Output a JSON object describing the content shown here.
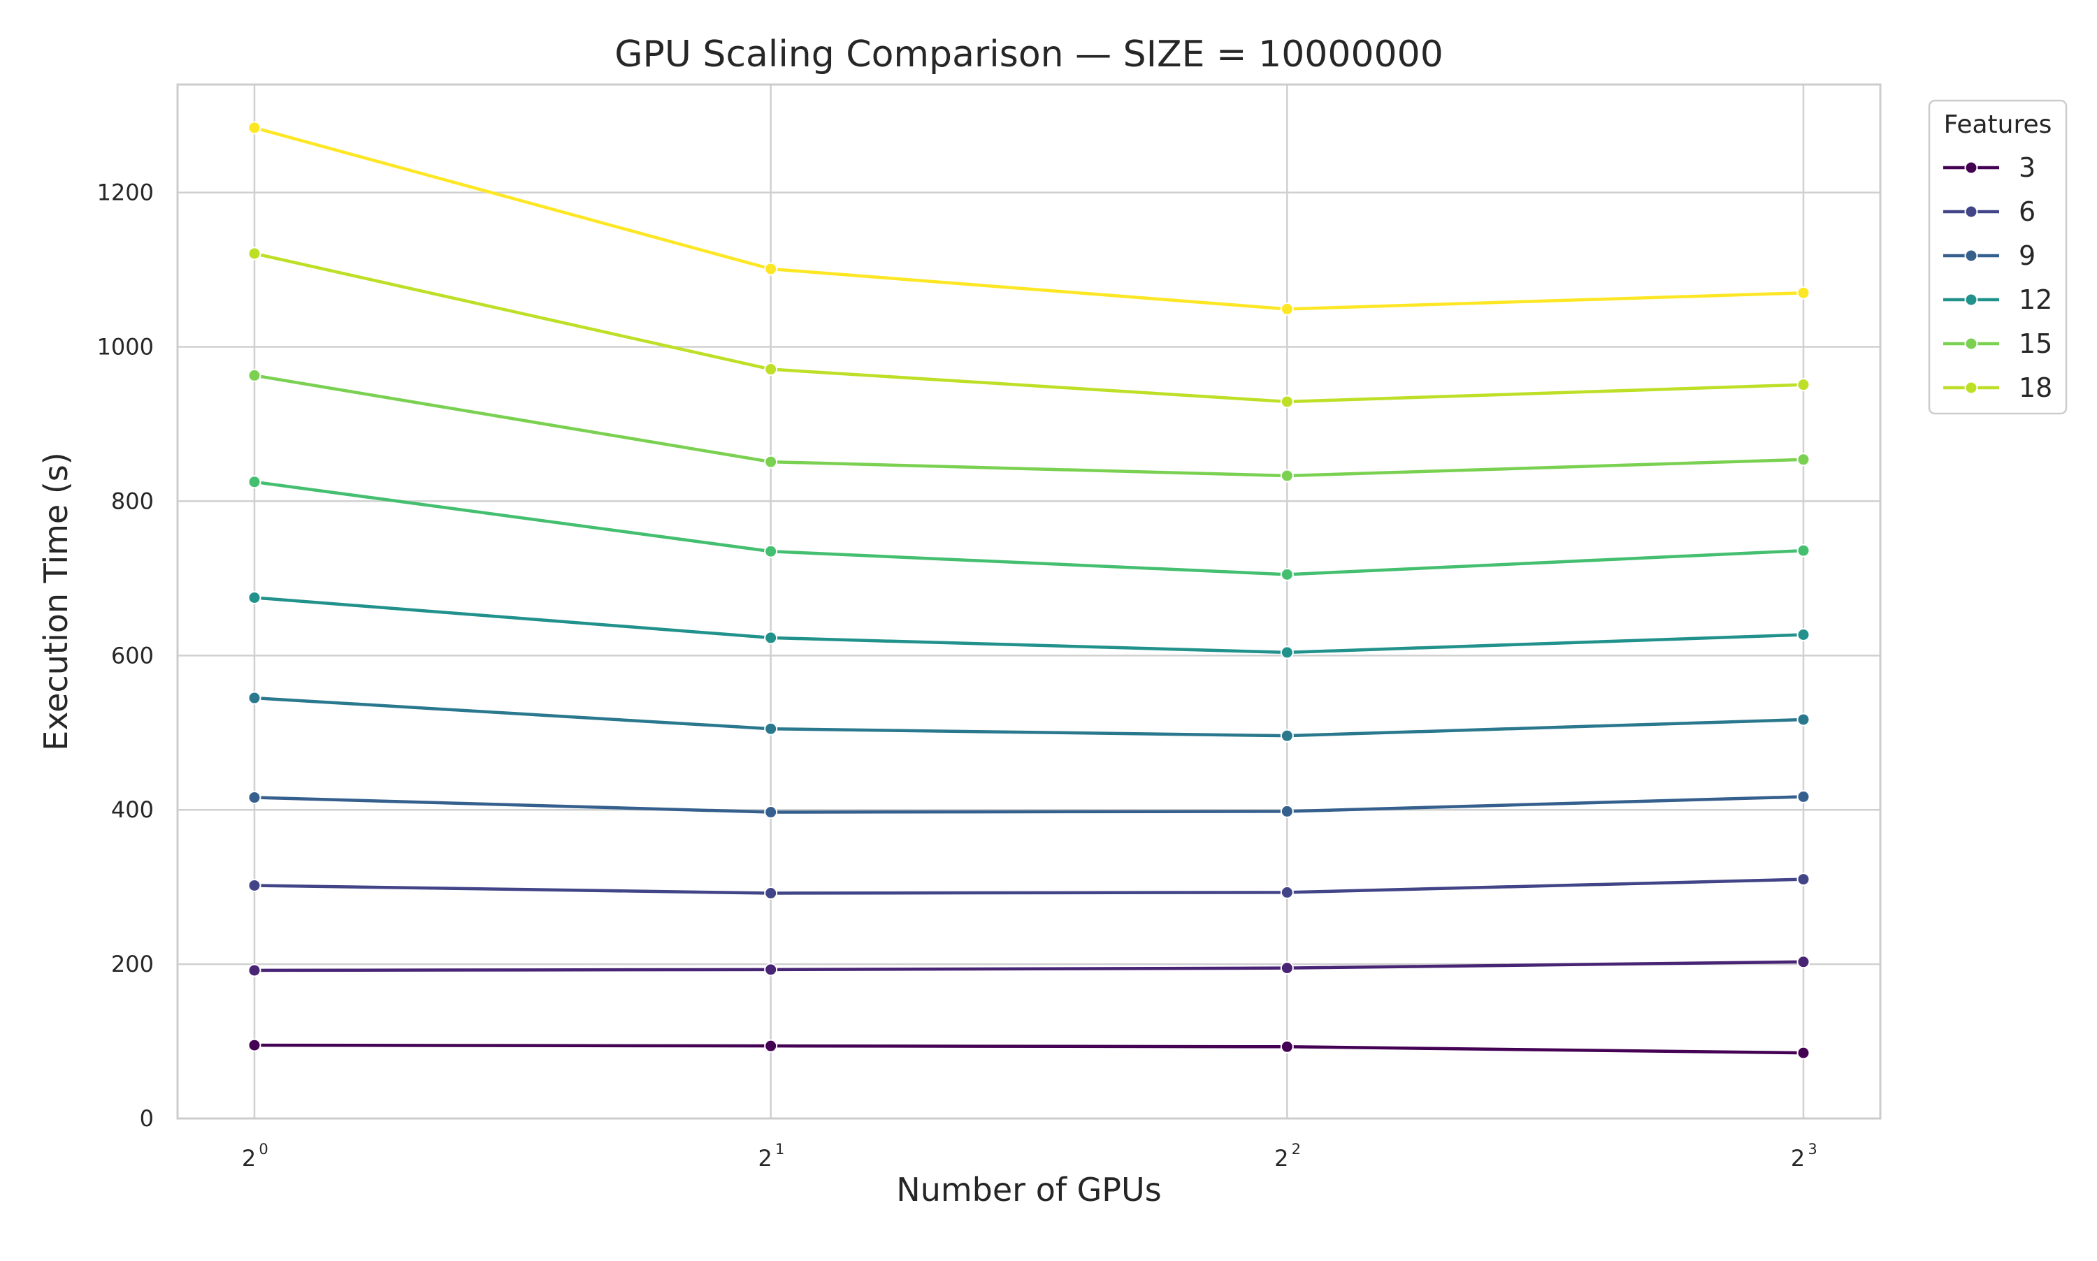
{
  "chart_data": {
    "type": "line",
    "title": "GPU Scaling Comparison — SIZE = 10000000",
    "xlabel": "Number of GPUs",
    "ylabel": "Execution Time (s)",
    "x": [
      1,
      2,
      4,
      8
    ],
    "x_scale": "log2",
    "x_tick_labels": [
      {
        "base": "2",
        "exp": "0"
      },
      {
        "base": "2",
        "exp": "1"
      },
      {
        "base": "2",
        "exp": "2"
      },
      {
        "base": "2",
        "exp": "3"
      }
    ],
    "ylim": [
      0,
      1340
    ],
    "y_ticks": [
      0,
      200,
      400,
      600,
      800,
      1000,
      1200
    ],
    "grid": true,
    "legend": {
      "title": "Features",
      "placement": "outside top-right"
    },
    "series": [
      {
        "name": "3",
        "color": "#440154",
        "values": [
          95,
          94,
          93,
          85
        ],
        "in_legend": true
      },
      {
        "name": "",
        "color": "#482475",
        "values": [
          192,
          193,
          195,
          203
        ],
        "in_legend": false
      },
      {
        "name": "6",
        "color": "#414487",
        "values": [
          302,
          292,
          293,
          310
        ],
        "in_legend": true
      },
      {
        "name": "9",
        "color": "#355f8d",
        "values": [
          416,
          397,
          398,
          417
        ],
        "in_legend": true
      },
      {
        "name": "",
        "color": "#2a788e",
        "values": [
          545,
          505,
          496,
          517
        ],
        "in_legend": false
      },
      {
        "name": "12",
        "color": "#21918c",
        "values": [
          675,
          623,
          604,
          627
        ],
        "in_legend": true
      },
      {
        "name": "",
        "color": "#44bf70",
        "values": [
          825,
          735,
          705,
          736
        ],
        "in_legend": false
      },
      {
        "name": "15",
        "color": "#7ad151",
        "values": [
          963,
          851,
          833,
          854
        ],
        "in_legend": true
      },
      {
        "name": "18",
        "color": "#bddf26",
        "values": [
          1121,
          971,
          929,
          951
        ],
        "in_legend": true
      },
      {
        "name": "",
        "color": "#fde725",
        "values": [
          1284,
          1101,
          1049,
          1070
        ],
        "in_legend": false
      }
    ]
  }
}
